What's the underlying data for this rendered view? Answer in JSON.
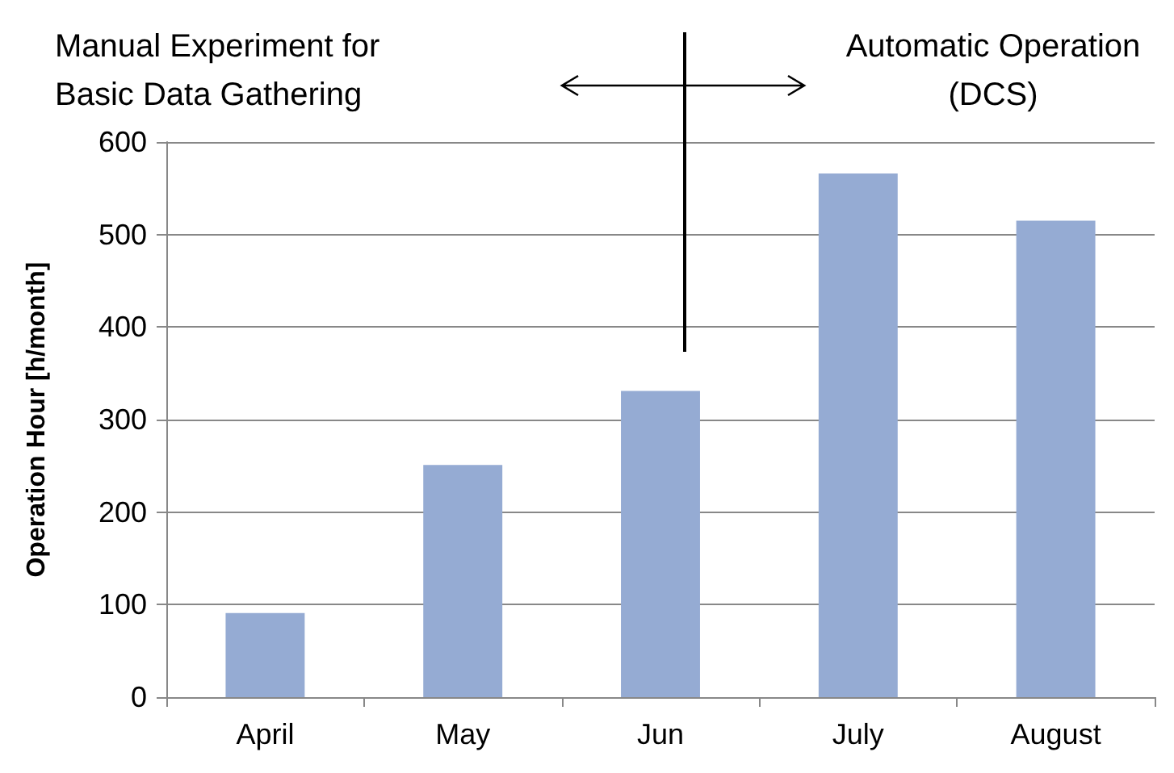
{
  "chart_data": {
    "type": "bar",
    "ylabel": "Operation Hour [h/month]",
    "annotations": [
      "Manual Experiment for\nBasic Data Gathering",
      "Automatic Operation\n(DCS)"
    ],
    "categories": [
      "April",
      "May",
      "Jun",
      "July",
      "August"
    ],
    "values": [
      91,
      251,
      331,
      566,
      515
    ],
    "color": "#95abd3",
    "ylim": [
      0,
      600
    ],
    "yticks": [
      0,
      100,
      200,
      300,
      400,
      500,
      600
    ],
    "grid": "y"
  }
}
